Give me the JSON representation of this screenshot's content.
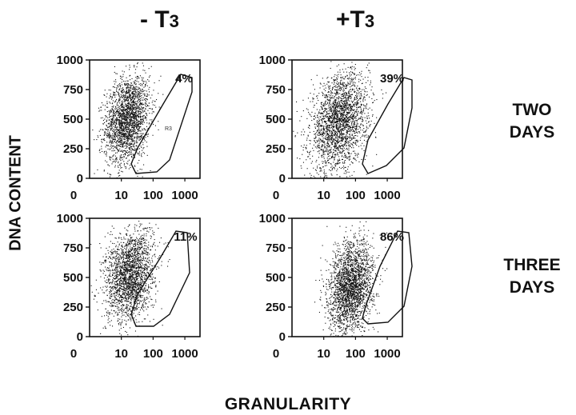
{
  "columns": [
    {
      "minus_prefix": "- T",
      "minus_sub": "3"
    },
    {
      "plus_prefix": "+T",
      "plus_sub": "3"
    }
  ],
  "column_titles": {
    "left_main": "- T",
    "left_sub": "3",
    "right_main": "+T",
    "right_sub": "3"
  },
  "row_titles": {
    "row1_line1": "TWO",
    "row1_line2": "DAYS",
    "row2_line1": "THREE",
    "row2_line2": "DAYS"
  },
  "y_axis_label": "DNA CONTENT",
  "x_axis_label": "GRANULARITY",
  "chart_data": [
    {
      "type": "scatter",
      "panel": "-T3 / TWO DAYS",
      "annotation": "4%",
      "region_label": "R3",
      "x_scale": "log",
      "xlim": [
        1,
        3000
      ],
      "ylim": [
        0,
        1000
      ],
      "x_ticks": [
        "0",
        "10",
        "100",
        "1000"
      ],
      "y_ticks": [
        "0",
        "250",
        "500",
        "750",
        "1000"
      ],
      "cluster": {
        "x_center": 15,
        "y_center": 500,
        "x_spread": 0.35,
        "y_spread": 180,
        "points": 2200
      }
    },
    {
      "type": "scatter",
      "panel": "+T3 / TWO DAYS",
      "annotation": "39%",
      "x_scale": "log",
      "xlim": [
        1,
        3000
      ],
      "ylim": [
        0,
        1000
      ],
      "x_ticks": [
        "0",
        "10",
        "100",
        "1000"
      ],
      "y_ticks": [
        "0",
        "250",
        "500",
        "750",
        "1000"
      ],
      "cluster": {
        "x_center": 30,
        "y_center": 480,
        "x_spread": 0.45,
        "y_spread": 200,
        "points": 2400
      }
    },
    {
      "type": "scatter",
      "panel": "-T3 / THREE DAYS",
      "annotation": "11%",
      "x_scale": "log",
      "xlim": [
        1,
        3000
      ],
      "ylim": [
        0,
        1000
      ],
      "x_ticks": [
        "0",
        "10",
        "100",
        "1000"
      ],
      "y_ticks": [
        "0",
        "250",
        "500",
        "750",
        "1000"
      ],
      "cluster": {
        "x_center": 18,
        "y_center": 520,
        "x_spread": 0.38,
        "y_spread": 190,
        "points": 2200
      }
    },
    {
      "type": "scatter",
      "panel": "+T3 / THREE DAYS",
      "annotation": "86%",
      "x_scale": "log",
      "xlim": [
        1,
        3000
      ],
      "ylim": [
        0,
        1000
      ],
      "x_ticks": [
        "0",
        "10",
        "100",
        "1000"
      ],
      "y_ticks": [
        "0",
        "250",
        "500",
        "750",
        "1000"
      ],
      "cluster": {
        "x_center": 70,
        "y_center": 420,
        "x_spread": 0.35,
        "y_spread": 190,
        "points": 2400
      }
    }
  ]
}
